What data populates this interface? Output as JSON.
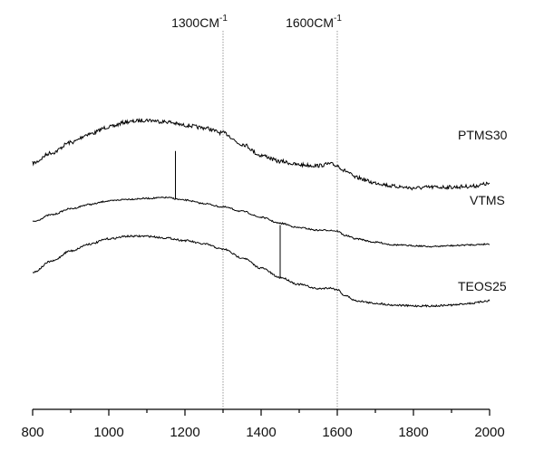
{
  "chart_data": {
    "type": "line",
    "title": "",
    "xlabel": "",
    "ylabel": "",
    "xlim": [
      800,
      2000
    ],
    "x_ticks": [
      800,
      1000,
      1200,
      1400,
      1600,
      1800,
      2000
    ],
    "x_tick_labels": [
      "800",
      "1000",
      "1200",
      "1400",
      "1600",
      "1800",
      "2000"
    ],
    "grid": false,
    "reference_lines": [
      {
        "x": 1300,
        "label": "1300CM",
        "superscript": "-1"
      },
      {
        "x": 1600,
        "label": "1600CM",
        "superscript": "-1"
      }
    ],
    "series": [
      {
        "name": "PTMS30",
        "x": [
          800,
          850,
          900,
          950,
          1000,
          1050,
          1100,
          1150,
          1200,
          1250,
          1300,
          1350,
          1400,
          1450,
          1500,
          1550,
          1580,
          1600,
          1620,
          1650,
          1700,
          1750,
          1800,
          1850,
          1900,
          1950,
          2000
        ],
        "y": [
          0.71,
          0.77,
          0.83,
          0.88,
          0.92,
          0.95,
          0.96,
          0.95,
          0.93,
          0.915,
          0.885,
          0.82,
          0.755,
          0.72,
          0.7,
          0.695,
          0.705,
          0.695,
          0.665,
          0.625,
          0.595,
          0.575,
          0.565,
          0.57,
          0.57,
          0.575,
          0.59
        ]
      },
      {
        "name": "VTMS",
        "x": [
          800,
          850,
          900,
          950,
          1000,
          1050,
          1100,
          1150,
          1200,
          1250,
          1300,
          1350,
          1400,
          1450,
          1500,
          1550,
          1580,
          1600,
          1620,
          1650,
          1700,
          1750,
          1800,
          1850,
          1900,
          1950,
          2000
        ],
        "y": [
          0.37,
          0.41,
          0.445,
          0.47,
          0.49,
          0.5,
          0.505,
          0.51,
          0.495,
          0.475,
          0.455,
          0.43,
          0.395,
          0.36,
          0.335,
          0.32,
          0.32,
          0.315,
          0.29,
          0.27,
          0.25,
          0.235,
          0.23,
          0.225,
          0.23,
          0.235,
          0.24
        ],
        "spike": {
          "x": 1175,
          "y_top": 0.78
        }
      },
      {
        "name": "TEOS25",
        "x": [
          800,
          850,
          900,
          950,
          1000,
          1050,
          1100,
          1150,
          1200,
          1250,
          1300,
          1350,
          1400,
          1450,
          1500,
          1550,
          1580,
          1600,
          1620,
          1650,
          1700,
          1750,
          1800,
          1850,
          1900,
          1950,
          2000
        ],
        "y": [
          0.075,
          0.14,
          0.2,
          0.24,
          0.27,
          0.285,
          0.285,
          0.275,
          0.26,
          0.24,
          0.21,
          0.16,
          0.1,
          0.045,
          0.005,
          -0.02,
          -0.015,
          -0.025,
          -0.06,
          -0.09,
          -0.105,
          -0.115,
          -0.12,
          -0.12,
          -0.115,
          -0.105,
          -0.09
        ],
        "spike": {
          "x": 1450,
          "y_top": 0.35
        }
      }
    ]
  }
}
